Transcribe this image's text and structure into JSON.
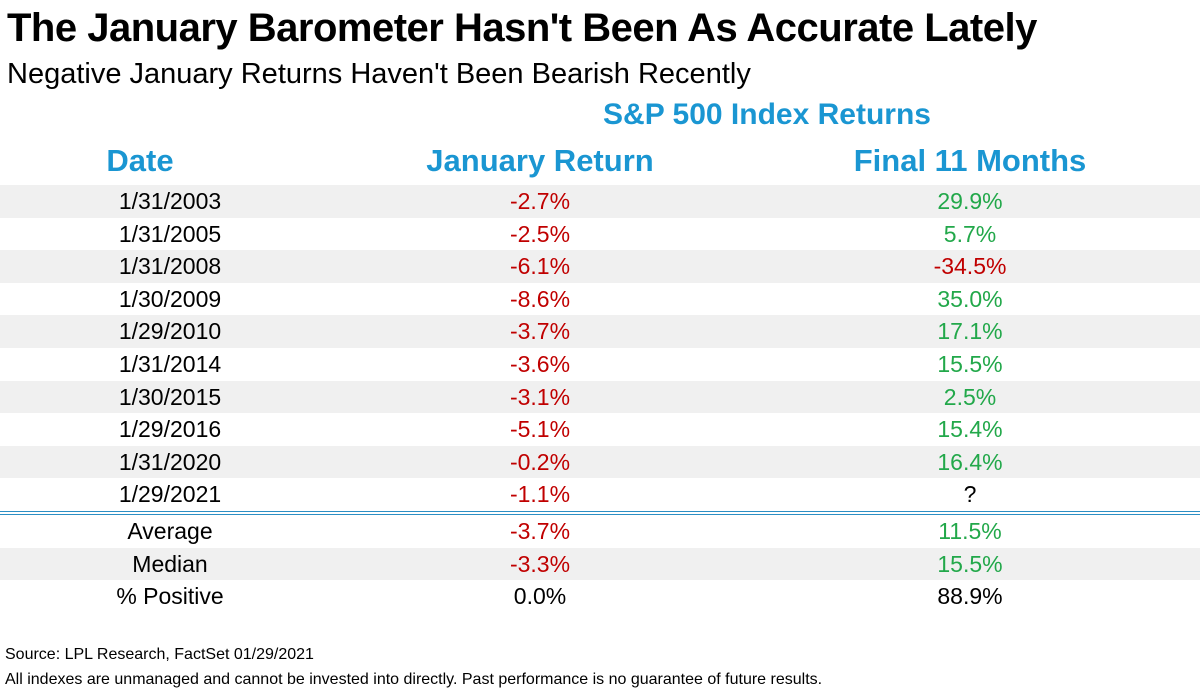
{
  "title": "The January Barometer Hasn't Been As Accurate Lately",
  "subtitle": "Negative January Returns Haven't Been Bearish Recently",
  "colors": {
    "header_blue": "#1a96d2",
    "negative_red": "#c00000",
    "positive_green": "#22a84a",
    "neutral_black": "#000000",
    "row_shade": "#f0f0f0",
    "divider_blue": "#2c8fc4"
  },
  "chart_data": {
    "type": "table",
    "group_header": "S&P 500 Index Returns",
    "columns": [
      "Date",
      "January Return",
      "Final 11 Months"
    ],
    "rows": [
      {
        "date": "1/31/2003",
        "jan": "-2.7%",
        "final": "29.9%",
        "jan_sign": "neg",
        "final_sign": "pos"
      },
      {
        "date": "1/31/2005",
        "jan": "-2.5%",
        "final": "5.7%",
        "jan_sign": "neg",
        "final_sign": "pos"
      },
      {
        "date": "1/31/2008",
        "jan": "-6.1%",
        "final": "-34.5%",
        "jan_sign": "neg",
        "final_sign": "neg"
      },
      {
        "date": "1/30/2009",
        "jan": "-8.6%",
        "final": "35.0%",
        "jan_sign": "neg",
        "final_sign": "pos"
      },
      {
        "date": "1/29/2010",
        "jan": "-3.7%",
        "final": "17.1%",
        "jan_sign": "neg",
        "final_sign": "pos"
      },
      {
        "date": "1/31/2014",
        "jan": "-3.6%",
        "final": "15.5%",
        "jan_sign": "neg",
        "final_sign": "pos"
      },
      {
        "date": "1/30/2015",
        "jan": "-3.1%",
        "final": "2.5%",
        "jan_sign": "neg",
        "final_sign": "pos"
      },
      {
        "date": "1/29/2016",
        "jan": "-5.1%",
        "final": "15.4%",
        "jan_sign": "neg",
        "final_sign": "pos"
      },
      {
        "date": "1/31/2020",
        "jan": "-0.2%",
        "final": "16.4%",
        "jan_sign": "neg",
        "final_sign": "pos"
      },
      {
        "date": "1/29/2021",
        "jan": "-1.1%",
        "final": "?",
        "jan_sign": "neg",
        "final_sign": "neutral"
      }
    ],
    "summary": [
      {
        "label": "Average",
        "jan": "-3.7%",
        "final": "11.5%",
        "jan_sign": "neg",
        "final_sign": "pos"
      },
      {
        "label": "Median",
        "jan": "-3.3%",
        "final": "15.5%",
        "jan_sign": "neg",
        "final_sign": "pos"
      },
      {
        "label": "% Positive",
        "jan": "0.0%",
        "final": "88.9%",
        "jan_sign": "neutral",
        "final_sign": "neutral"
      }
    ]
  },
  "footnotes": {
    "source": "Source: LPL Research, FactSet 01/29/2021",
    "disclaimer": "All indexes are unmanaged and cannot be invested into directly. Past performance is no guarantee of future results."
  }
}
